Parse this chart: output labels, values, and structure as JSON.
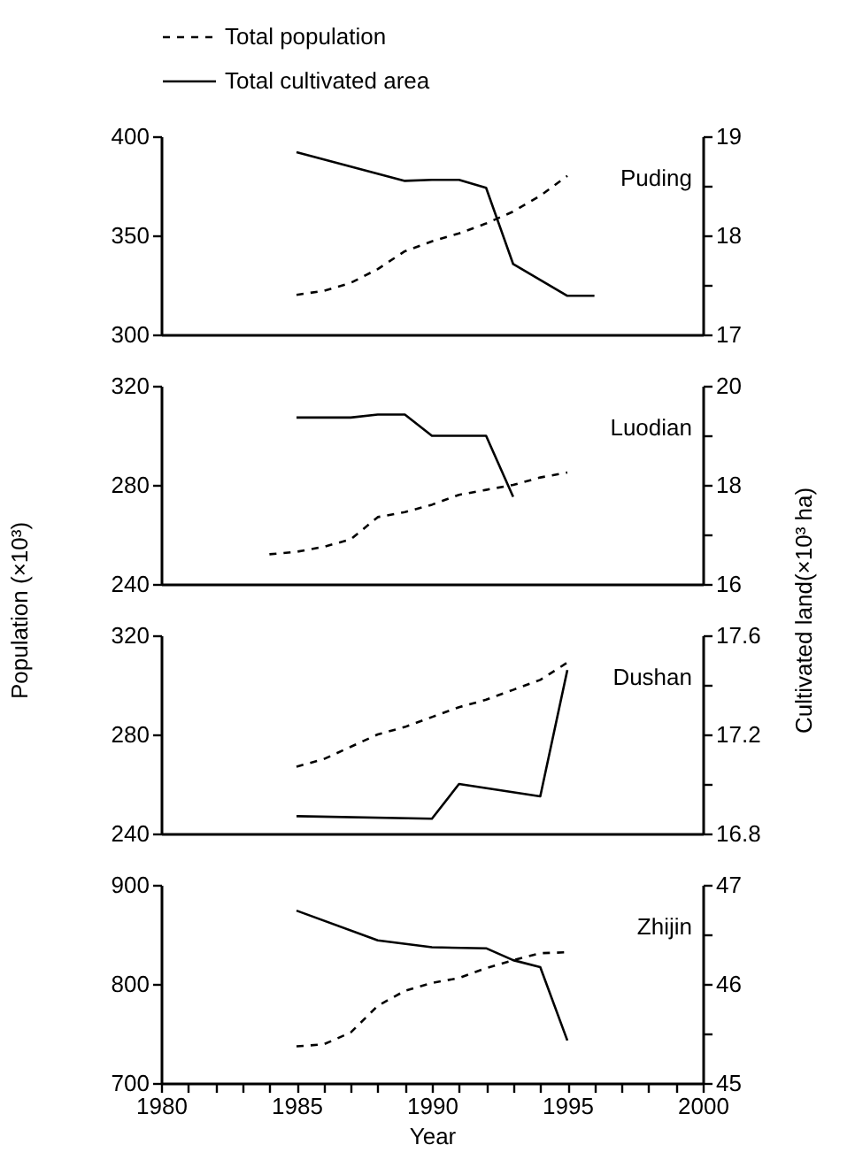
{
  "chart_data": [
    {
      "type": "line",
      "title": "Puding",
      "legend": "top",
      "tick_labels": "y",
      "xlim": [
        1980,
        2000
      ],
      "ylim": [
        300,
        400
      ],
      "yticks": [
        300,
        350,
        400
      ],
      "y2lim": [
        17,
        19
      ],
      "y2ticks": [
        17,
        {
          "value": 17.5,
          "label": null
        },
        18,
        {
          "value": 18.5,
          "label": null
        },
        19
      ],
      "series": [
        {
          "name": "Total population",
          "color": "#000000",
          "line_style": "dashed",
          "x": [
            1985,
            1986,
            1987,
            1988,
            1989,
            1990,
            1991,
            1992,
            1993,
            1994,
            1995
          ],
          "values": [
            320,
            322,
            326,
            333,
            342,
            347,
            351,
            356,
            362,
            370,
            380
          ]
        },
        {
          "name": "Total cultivated area",
          "color": "#000000",
          "line_style": "solid",
          "axis": "y2",
          "x": [
            1985,
            1989,
            1990,
            1991,
            1992,
            1993,
            1995,
            1996
          ],
          "values": [
            18.84,
            18.55,
            18.56,
            18.56,
            18.48,
            17.71,
            17.39,
            17.39
          ]
        }
      ]
    },
    {
      "type": "line",
      "title": "Luodian",
      "ylabel": "Population (×10³)",
      "y2label": "Cultivated land(×10³ ha)",
      "tick_labels": "y",
      "xlim": [
        1980,
        2000
      ],
      "ylim": [
        240,
        320
      ],
      "yticks": [
        240,
        280,
        320
      ],
      "y2lim": [
        16,
        20
      ],
      "y2ticks": [
        16,
        {
          "value": 17,
          "label": null
        },
        18,
        {
          "value": 19,
          "label": null
        },
        20
      ],
      "series": [
        {
          "color": "#000000",
          "line_style": "dashed",
          "x": [
            1984,
            1985,
            1986,
            1987,
            1988,
            1989,
            1990,
            1991,
            1992,
            1993,
            1994,
            1995
          ],
          "values": [
            252,
            253,
            255,
            258,
            267,
            269,
            272,
            276,
            278,
            280,
            283,
            285
          ]
        },
        {
          "color": "#000000",
          "line_style": "solid",
          "axis": "y2",
          "x": [
            1985,
            1987,
            1988,
            1989,
            1990,
            1992,
            1993
          ],
          "values": [
            19.36,
            19.36,
            19.42,
            19.42,
            18.99,
            18.99,
            17.76
          ]
        }
      ]
    },
    {
      "type": "line",
      "title": "Dushan",
      "tick_labels": "y",
      "xlim": [
        1980,
        2000
      ],
      "ylim": [
        240,
        320
      ],
      "yticks": [
        240,
        280,
        320
      ],
      "y2lim": [
        16.8,
        17.6
      ],
      "y2ticks": [
        16.8,
        {
          "value": 17.0,
          "label": null
        },
        17.2,
        {
          "value": 17.4,
          "label": null
        },
        17.6
      ],
      "series": [
        {
          "color": "#000000",
          "line_style": "dashed",
          "x": [
            1985,
            1986,
            1987,
            1988,
            1989,
            1990,
            1991,
            1992,
            1993,
            1994,
            1995
          ],
          "values": [
            267,
            270,
            275,
            280,
            283,
            287,
            291,
            294,
            298,
            302,
            309
          ]
        },
        {
          "color": "#000000",
          "line_style": "solid",
          "axis": "y2",
          "x": [
            1985,
            1990,
            1991,
            1994,
            1995
          ],
          "values": [
            16.87,
            16.86,
            17.0,
            16.95,
            17.46
          ]
        }
      ]
    },
    {
      "type": "line",
      "title": "Zhijin",
      "xlabel": "Year",
      "xlim": [
        1980,
        2000
      ],
      "xticks": [
        1980,
        {
          "value": 1981,
          "label": null
        },
        {
          "value": 1982,
          "label": null
        },
        {
          "value": 1983,
          "label": null
        },
        {
          "value": 1984,
          "label": null
        },
        1985,
        {
          "value": 1986,
          "label": null
        },
        {
          "value": 1987,
          "label": null
        },
        {
          "value": 1988,
          "label": null
        },
        {
          "value": 1989,
          "label": null
        },
        1990,
        {
          "value": 1991,
          "label": null
        },
        {
          "value": 1992,
          "label": null
        },
        {
          "value": 1993,
          "label": null
        },
        {
          "value": 1994,
          "label": null
        },
        1995,
        {
          "value": 1996,
          "label": null
        },
        {
          "value": 1997,
          "label": null
        },
        {
          "value": 1998,
          "label": null
        },
        {
          "value": 1999,
          "label": null
        },
        2000
      ],
      "ylim": [
        700,
        900
      ],
      "yticks": [
        700,
        800,
        900
      ],
      "y2lim": [
        45,
        47
      ],
      "y2ticks": [
        45,
        {
          "value": 45.5,
          "label": null
        },
        46,
        {
          "value": 46.5,
          "label": null
        },
        47
      ],
      "series": [
        {
          "color": "#000000",
          "line_style": "dashed",
          "x": [
            1985,
            1986,
            1987,
            1988,
            1989,
            1990,
            1991,
            1992,
            1993,
            1994,
            1995
          ],
          "values": [
            737,
            739,
            751,
            778,
            793,
            801,
            806,
            816,
            824,
            831,
            832
          ]
        },
        {
          "color": "#000000",
          "line_style": "solid",
          "axis": "y2",
          "x": [
            1985,
            1988,
            1990,
            1992,
            1993,
            1994,
            1995
          ],
          "values": [
            46.74,
            46.44,
            46.37,
            46.36,
            46.24,
            46.17,
            45.43
          ]
        }
      ]
    }
  ]
}
